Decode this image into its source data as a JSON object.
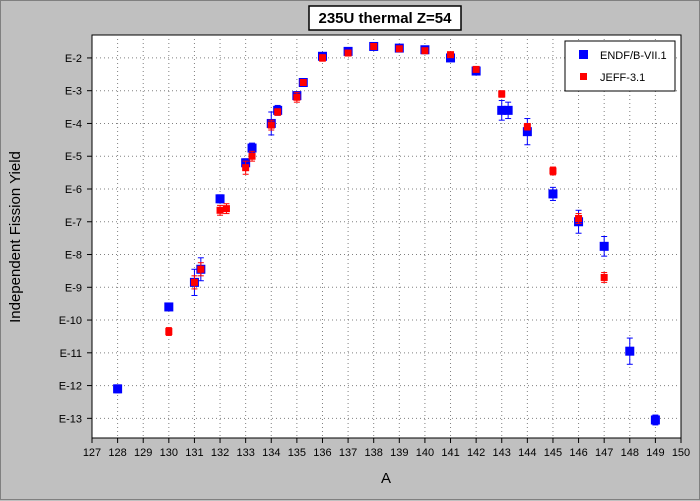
{
  "chart_data": {
    "type": "scatter",
    "title": "235U thermal Z=54",
    "xlabel": "A",
    "ylabel": "Independent Fission Yield",
    "xlim": [
      127,
      150
    ],
    "ylim": [
      -13.6,
      -1.3
    ],
    "y_scale": "log",
    "x_ticks": [
      127,
      128,
      129,
      130,
      131,
      132,
      133,
      134,
      135,
      136,
      137,
      138,
      139,
      140,
      141,
      142,
      143,
      144,
      145,
      146,
      147,
      148,
      149,
      150
    ],
    "y_ticks": [
      {
        "value": -2,
        "label": "E-2"
      },
      {
        "value": -3,
        "label": "E-3"
      },
      {
        "value": -4,
        "label": "E-4"
      },
      {
        "value": -5,
        "label": "E-5"
      },
      {
        "value": -6,
        "label": "E-6"
      },
      {
        "value": -7,
        "label": "E-7"
      },
      {
        "value": -8,
        "label": "E-8"
      },
      {
        "value": -9,
        "label": "E-9"
      },
      {
        "value": -10,
        "label": "E-10"
      },
      {
        "value": -11,
        "label": "E-11"
      },
      {
        "value": -12,
        "label": "E-12"
      },
      {
        "value": -13,
        "label": "E-13"
      }
    ],
    "grid": true,
    "legend_position": "top-right",
    "series": [
      {
        "name": "ENDF/B-VII.1",
        "color": "#0000ff",
        "marker": "square",
        "points": [
          {
            "x": 128,
            "y": -12.1,
            "err": 0.12
          },
          {
            "x": 130,
            "y": -9.6,
            "err": 0.1
          },
          {
            "x": 131,
            "y": -8.85,
            "err": 0.4
          },
          {
            "x": 131.25,
            "y": -8.45,
            "err": 0.35
          },
          {
            "x": 132,
            "y": -6.3,
            "err": 0.12
          },
          {
            "x": 133,
            "y": -5.2,
            "err": 0.12
          },
          {
            "x": 133.25,
            "y": -4.75,
            "err": 0.15
          },
          {
            "x": 134,
            "y": -4.0,
            "err": 0.35
          },
          {
            "x": 134.25,
            "y": -3.6,
            "err": 0.15
          },
          {
            "x": 135,
            "y": -3.15,
            "err": 0.12
          },
          {
            "x": 135.25,
            "y": -2.75,
            "err": 0.1
          },
          {
            "x": 136,
            "y": -1.95,
            "err": 0.1
          },
          {
            "x": 137,
            "y": -1.8,
            "err": 0.06
          },
          {
            "x": 138,
            "y": -1.65,
            "err": 0.05
          },
          {
            "x": 139,
            "y": -1.7,
            "err": 0.05
          },
          {
            "x": 140,
            "y": -1.75,
            "err": 0.05
          },
          {
            "x": 141,
            "y": -2.0,
            "err": 0.06
          },
          {
            "x": 142,
            "y": -2.4,
            "err": 0.08
          },
          {
            "x": 143,
            "y": -3.6,
            "err": 0.3
          },
          {
            "x": 143.25,
            "y": -3.6,
            "err": 0.25
          },
          {
            "x": 144,
            "y": -4.25,
            "err": 0.4
          },
          {
            "x": 145,
            "y": -6.15,
            "err": 0.2
          },
          {
            "x": 146,
            "y": -7.0,
            "err": 0.35
          },
          {
            "x": 147,
            "y": -7.75,
            "err": 0.3
          },
          {
            "x": 148,
            "y": -10.95,
            "err": 0.4
          },
          {
            "x": 149,
            "y": -13.05,
            "err": 0.15
          }
        ]
      },
      {
        "name": "JEFF-3.1",
        "color": "#ff0000",
        "marker": "square",
        "points": [
          {
            "x": 130,
            "y": -10.35,
            "err": 0.12
          },
          {
            "x": 131,
            "y": -8.85,
            "err": 0.2
          },
          {
            "x": 131.25,
            "y": -8.45,
            "err": 0.2
          },
          {
            "x": 132,
            "y": -6.65,
            "err": 0.15
          },
          {
            "x": 132.25,
            "y": -6.6,
            "err": 0.15
          },
          {
            "x": 133,
            "y": -5.35,
            "err": 0.2
          },
          {
            "x": 133.25,
            "y": -5.0,
            "err": 0.15
          },
          {
            "x": 134,
            "y": -4.05,
            "err": 0.15
          },
          {
            "x": 134.25,
            "y": -3.65,
            "err": 0.1
          },
          {
            "x": 135,
            "y": -3.2,
            "err": 0.15
          },
          {
            "x": 135.25,
            "y": -2.75,
            "err": 0.08
          },
          {
            "x": 136,
            "y": -2.0,
            "err": 0.1
          },
          {
            "x": 137,
            "y": -1.85,
            "err": 0.05
          },
          {
            "x": 138,
            "y": -1.65,
            "err": 0.04
          },
          {
            "x": 139,
            "y": -1.72,
            "err": 0.04
          },
          {
            "x": 140,
            "y": -1.78,
            "err": 0.04
          },
          {
            "x": 141,
            "y": -1.9,
            "err": 0.05
          },
          {
            "x": 142,
            "y": -2.35,
            "err": 0.06
          },
          {
            "x": 143,
            "y": -3.1,
            "err": 0.1
          },
          {
            "x": 144,
            "y": -4.1,
            "err": 0.1
          },
          {
            "x": 145,
            "y": -5.45,
            "err": 0.12
          },
          {
            "x": 146,
            "y": -6.9,
            "err": 0.15
          },
          {
            "x": 147,
            "y": -8.7,
            "err": 0.15
          }
        ]
      }
    ]
  }
}
